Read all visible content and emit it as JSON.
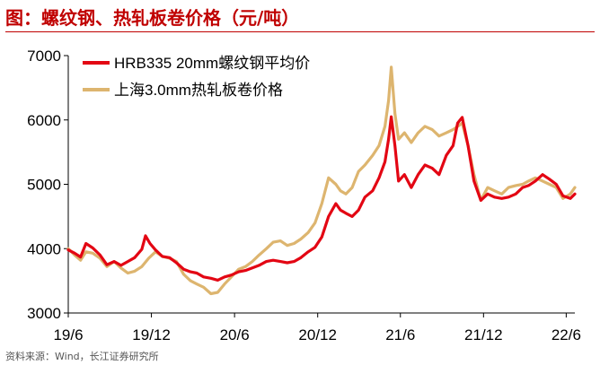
{
  "header": {
    "title": "图：螺纹钢、热轧板卷价格（元/吨）"
  },
  "footer": {
    "source": "资料来源：Wind，长江证券研究所"
  },
  "chart_data": {
    "type": "line",
    "title": "图：螺纹钢、热轧板卷价格（元/吨）",
    "xlabel": "",
    "ylabel": "",
    "ylim": [
      3000,
      7000
    ],
    "yticks": [
      3000,
      4000,
      5000,
      6000,
      7000
    ],
    "xticks": [
      "19/6",
      "19/12",
      "20/6",
      "20/12",
      "21/6",
      "21/12",
      "22/6"
    ],
    "grid": false,
    "legend_position": "top-left",
    "series": [
      {
        "name": "HRB335 20mm螺纹钢平均价",
        "color": "#e30613",
        "points": [
          [
            "2019-06-01",
            3980
          ],
          [
            "2019-06-15",
            3930
          ],
          [
            "2019-06-28",
            3870
          ],
          [
            "2019-07-10",
            4080
          ],
          [
            "2019-07-25",
            4010
          ],
          [
            "2019-08-10",
            3900
          ],
          [
            "2019-08-25",
            3750
          ],
          [
            "2019-09-10",
            3800
          ],
          [
            "2019-09-25",
            3740
          ],
          [
            "2019-10-10",
            3800
          ],
          [
            "2019-10-25",
            3860
          ],
          [
            "2019-11-10",
            3990
          ],
          [
            "2019-11-18",
            4200
          ],
          [
            "2019-11-28",
            4080
          ],
          [
            "2019-12-10",
            3980
          ],
          [
            "2019-12-25",
            3880
          ],
          [
            "2020-01-10",
            3860
          ],
          [
            "2020-01-25",
            3780
          ],
          [
            "2020-02-10",
            3680
          ],
          [
            "2020-02-25",
            3640
          ],
          [
            "2020-03-10",
            3620
          ],
          [
            "2020-03-25",
            3560
          ],
          [
            "2020-04-10",
            3540
          ],
          [
            "2020-04-25",
            3510
          ],
          [
            "2020-05-10",
            3560
          ],
          [
            "2020-05-25",
            3590
          ],
          [
            "2020-06-10",
            3640
          ],
          [
            "2020-06-25",
            3660
          ],
          [
            "2020-07-10",
            3700
          ],
          [
            "2020-07-25",
            3740
          ],
          [
            "2020-08-10",
            3800
          ],
          [
            "2020-08-25",
            3820
          ],
          [
            "2020-09-10",
            3800
          ],
          [
            "2020-09-25",
            3780
          ],
          [
            "2020-10-10",
            3800
          ],
          [
            "2020-10-25",
            3860
          ],
          [
            "2020-11-10",
            3950
          ],
          [
            "2020-11-25",
            4020
          ],
          [
            "2020-12-10",
            4180
          ],
          [
            "2020-12-25",
            4500
          ],
          [
            "2021-01-10",
            4700
          ],
          [
            "2021-01-20",
            4600
          ],
          [
            "2021-02-01",
            4550
          ],
          [
            "2021-02-15",
            4500
          ],
          [
            "2021-03-01",
            4600
          ],
          [
            "2021-03-15",
            4800
          ],
          [
            "2021-04-01",
            4900
          ],
          [
            "2021-04-15",
            5100
          ],
          [
            "2021-04-28",
            5350
          ],
          [
            "2021-05-06",
            5700
          ],
          [
            "2021-05-12",
            6050
          ],
          [
            "2021-05-20",
            5600
          ],
          [
            "2021-05-28",
            5050
          ],
          [
            "2021-06-10",
            5150
          ],
          [
            "2021-06-25",
            4950
          ],
          [
            "2021-07-10",
            5150
          ],
          [
            "2021-07-25",
            5300
          ],
          [
            "2021-08-10",
            5250
          ],
          [
            "2021-08-25",
            5150
          ],
          [
            "2021-09-10",
            5450
          ],
          [
            "2021-09-25",
            5600
          ],
          [
            "2021-10-05",
            5950
          ],
          [
            "2021-10-15",
            6040
          ],
          [
            "2021-10-28",
            5600
          ],
          [
            "2021-11-10",
            5050
          ],
          [
            "2021-11-25",
            4750
          ],
          [
            "2021-12-10",
            4850
          ],
          [
            "2021-12-25",
            4800
          ],
          [
            "2022-01-10",
            4780
          ],
          [
            "2022-01-25",
            4800
          ],
          [
            "2022-02-10",
            4850
          ],
          [
            "2022-02-25",
            4950
          ],
          [
            "2022-03-10",
            4980
          ],
          [
            "2022-03-25",
            5050
          ],
          [
            "2022-04-10",
            5150
          ],
          [
            "2022-04-25",
            5080
          ],
          [
            "2022-05-10",
            5000
          ],
          [
            "2022-05-25",
            4820
          ],
          [
            "2022-06-10",
            4780
          ],
          [
            "2022-06-20",
            4850
          ]
        ]
      },
      {
        "name": "上海3.0mm热轧板卷价格",
        "color": "#ddb56f",
        "points": [
          [
            "2019-06-01",
            4000
          ],
          [
            "2019-06-15",
            3900
          ],
          [
            "2019-06-28",
            3820
          ],
          [
            "2019-07-10",
            3950
          ],
          [
            "2019-07-25",
            3930
          ],
          [
            "2019-08-10",
            3850
          ],
          [
            "2019-08-25",
            3720
          ],
          [
            "2019-09-10",
            3800
          ],
          [
            "2019-09-25",
            3700
          ],
          [
            "2019-10-10",
            3620
          ],
          [
            "2019-10-25",
            3650
          ],
          [
            "2019-11-10",
            3720
          ],
          [
            "2019-11-25",
            3850
          ],
          [
            "2019-12-10",
            3950
          ],
          [
            "2019-12-25",
            3880
          ],
          [
            "2020-01-10",
            3850
          ],
          [
            "2020-01-25",
            3800
          ],
          [
            "2020-02-10",
            3600
          ],
          [
            "2020-02-25",
            3500
          ],
          [
            "2020-03-10",
            3450
          ],
          [
            "2020-03-25",
            3400
          ],
          [
            "2020-04-10",
            3300
          ],
          [
            "2020-04-25",
            3320
          ],
          [
            "2020-05-10",
            3450
          ],
          [
            "2020-05-25",
            3560
          ],
          [
            "2020-06-10",
            3680
          ],
          [
            "2020-06-25",
            3720
          ],
          [
            "2020-07-10",
            3800
          ],
          [
            "2020-07-25",
            3900
          ],
          [
            "2020-08-10",
            4000
          ],
          [
            "2020-08-25",
            4100
          ],
          [
            "2020-09-10",
            4120
          ],
          [
            "2020-09-25",
            4050
          ],
          [
            "2020-10-10",
            4080
          ],
          [
            "2020-10-25",
            4150
          ],
          [
            "2020-11-10",
            4250
          ],
          [
            "2020-11-25",
            4400
          ],
          [
            "2020-12-10",
            4700
          ],
          [
            "2020-12-25",
            5100
          ],
          [
            "2021-01-10",
            5000
          ],
          [
            "2021-01-20",
            4900
          ],
          [
            "2021-02-01",
            4850
          ],
          [
            "2021-02-15",
            4950
          ],
          [
            "2021-03-01",
            5200
          ],
          [
            "2021-03-15",
            5300
          ],
          [
            "2021-04-01",
            5450
          ],
          [
            "2021-04-15",
            5600
          ],
          [
            "2021-04-28",
            5900
          ],
          [
            "2021-05-06",
            6300
          ],
          [
            "2021-05-12",
            6820
          ],
          [
            "2021-05-20",
            6100
          ],
          [
            "2021-05-28",
            5700
          ],
          [
            "2021-06-10",
            5800
          ],
          [
            "2021-06-25",
            5650
          ],
          [
            "2021-07-10",
            5800
          ],
          [
            "2021-07-25",
            5900
          ],
          [
            "2021-08-10",
            5850
          ],
          [
            "2021-08-25",
            5750
          ],
          [
            "2021-09-10",
            5800
          ],
          [
            "2021-09-25",
            5850
          ],
          [
            "2021-10-05",
            5900
          ],
          [
            "2021-10-15",
            5950
          ],
          [
            "2021-10-28",
            5600
          ],
          [
            "2021-11-10",
            5150
          ],
          [
            "2021-11-25",
            4750
          ],
          [
            "2021-12-10",
            4950
          ],
          [
            "2021-12-25",
            4900
          ],
          [
            "2022-01-10",
            4850
          ],
          [
            "2022-01-25",
            4950
          ],
          [
            "2022-02-10",
            4980
          ],
          [
            "2022-02-25",
            5000
          ],
          [
            "2022-03-10",
            5050
          ],
          [
            "2022-03-25",
            5100
          ],
          [
            "2022-04-10",
            5050
          ],
          [
            "2022-04-25",
            5000
          ],
          [
            "2022-05-10",
            4950
          ],
          [
            "2022-05-25",
            4780
          ],
          [
            "2022-06-10",
            4850
          ],
          [
            "2022-06-20",
            4950
          ]
        ]
      }
    ]
  }
}
